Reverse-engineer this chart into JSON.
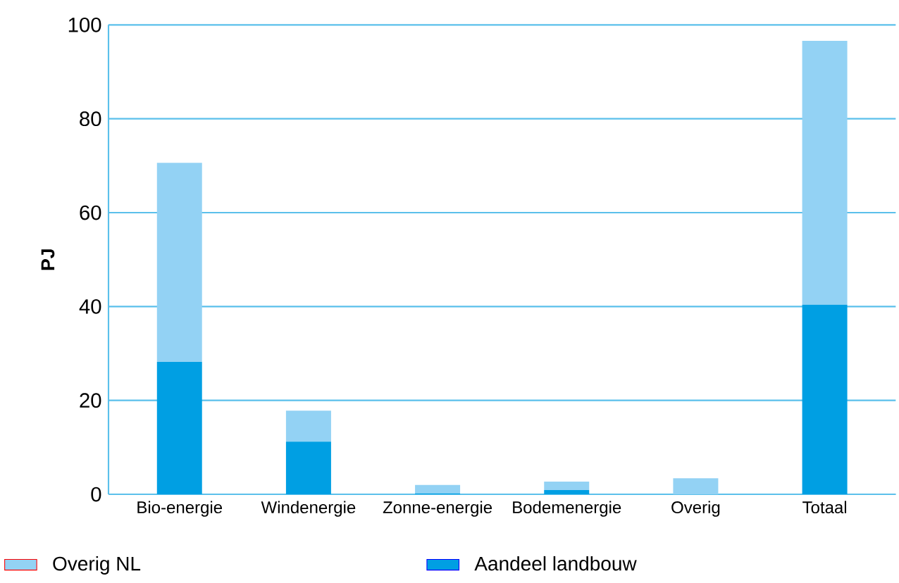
{
  "chart_data": {
    "type": "bar",
    "stacked": true,
    "ylabel": "PJ",
    "categories": [
      "Bio-energie",
      "Windenergie",
      "Zonne-energie",
      "Bodemenergie",
      "Overig",
      "Totaal"
    ],
    "series": [
      {
        "name": "Aandeel landbouw",
        "color": "#009fe3",
        "values": [
          28.2,
          11.2,
          0.2,
          0.9,
          0,
          40.4
        ]
      },
      {
        "name": "Overig NL",
        "color": "#93d2f4",
        "values": [
          42.4,
          6.6,
          1.8,
          1.8,
          3.4,
          56.2
        ]
      }
    ],
    "ylim": [
      0,
      100
    ],
    "yticks": [
      0,
      20,
      40,
      60,
      80,
      100
    ],
    "grid": "y",
    "legend": "bottom"
  }
}
